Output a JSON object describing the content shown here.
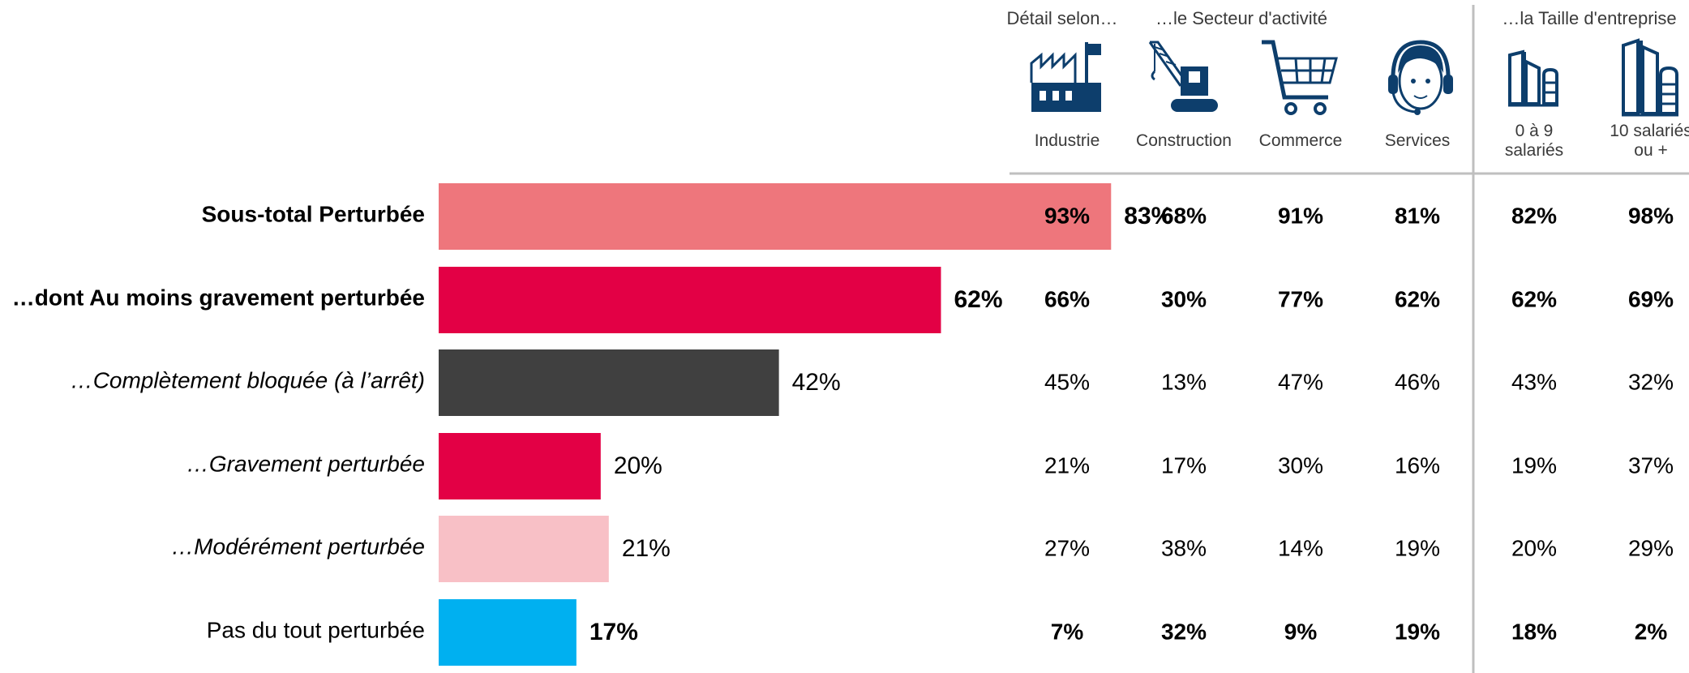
{
  "chart_data": {
    "type": "bar",
    "orientation": "horizontal",
    "xlim": [
      0,
      100
    ],
    "categories": [
      "Sous-total Perturbée",
      "…dont Au moins gravement perturbée",
      "…Complètement bloquée (à l’arrêt)",
      "…Gravement perturbée",
      "…Modérément perturbée",
      "Pas du tout perturbée"
    ],
    "values": [
      83,
      62,
      42,
      20,
      21,
      17
    ],
    "value_labels": [
      "83%",
      "62%",
      "42%",
      "20%",
      "21%",
      "17%"
    ],
    "colors": [
      "#ee767c",
      "#e30045",
      "#404040",
      "#e30045",
      "#f8c0c6",
      "#00b0f0"
    ],
    "label_styles": [
      "bold",
      "bold",
      "italic",
      "italic",
      "italic",
      "normal"
    ],
    "value_styles": [
      "bold",
      "bold",
      "normal",
      "normal",
      "normal",
      "bold"
    ]
  },
  "table": {
    "header_detail": "Détail selon…",
    "header_sector": "…le Secteur d'activité",
    "header_size": "…la Taille d'entreprise",
    "columns": [
      {
        "label": [
          "Industrie"
        ],
        "icon": "factory-icon"
      },
      {
        "label": [
          "Construction"
        ],
        "icon": "crane-icon"
      },
      {
        "label": [
          "Commerce"
        ],
        "icon": "shopping-cart-icon"
      },
      {
        "label": [
          "Services"
        ],
        "icon": "headset-operator-icon"
      },
      {
        "label": [
          "0 à 9",
          "salariés"
        ],
        "icon": "small-building-icon"
      },
      {
        "label": [
          "10 salariés",
          "ou +"
        ],
        "icon": "large-building-icon"
      }
    ],
    "rows": [
      [
        "93%",
        "68%",
        "91%",
        "81%",
        "82%",
        "98%"
      ],
      [
        "66%",
        "30%",
        "77%",
        "62%",
        "62%",
        "69%"
      ],
      [
        "45%",
        "13%",
        "47%",
        "46%",
        "43%",
        "32%"
      ],
      [
        "21%",
        "17%",
        "30%",
        "16%",
        "19%",
        "37%"
      ],
      [
        "27%",
        "38%",
        "14%",
        "19%",
        "20%",
        "29%"
      ],
      [
        "7%",
        "32%",
        "9%",
        "19%",
        "18%",
        "2%"
      ]
    ],
    "row_styles": [
      "bold",
      "bold",
      "normal",
      "normal",
      "normal",
      "bold"
    ]
  },
  "colors": {
    "icon": "#0d3e6c",
    "rule": "#bfbfbf",
    "header_text": "#3a3a3a"
  }
}
